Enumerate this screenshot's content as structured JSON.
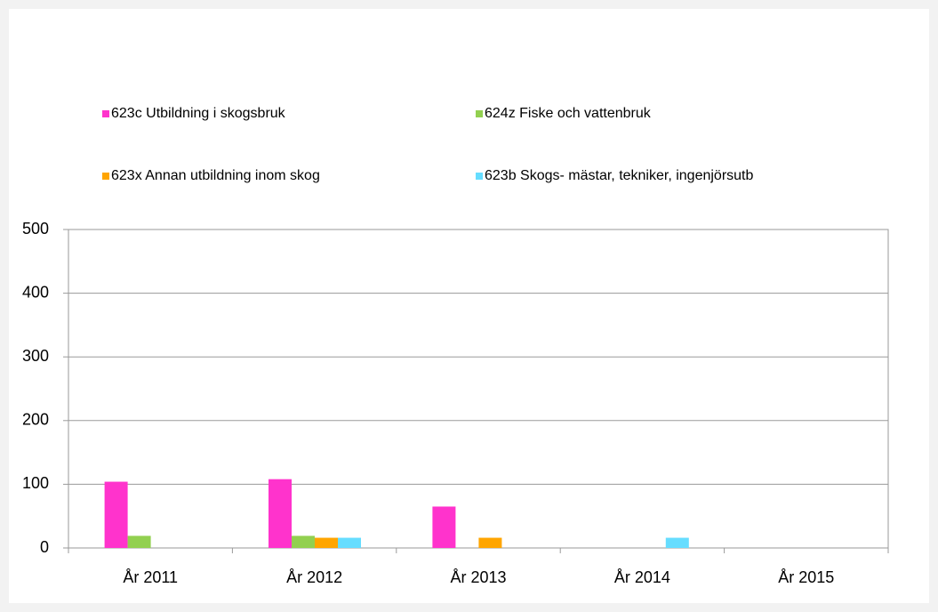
{
  "chart_data": {
    "type": "bar",
    "categories": [
      "År 2011",
      "År 2012",
      "År 2013",
      "År 2014",
      "År 2015"
    ],
    "series": [
      {
        "name": "623c Utbildning i skogsbruk",
        "color": "#ff33cc",
        "values": [
          104,
          108,
          65,
          0,
          0
        ]
      },
      {
        "name": "624z Fiske och vattenbruk",
        "color": "#92d050",
        "values": [
          19,
          19,
          0,
          0,
          0
        ]
      },
      {
        "name": "623x Annan utbildning inom skog",
        "color": "#ffa500",
        "values": [
          0,
          16,
          16,
          0,
          0
        ]
      },
      {
        "name": "623b Skogs- mästar, tekniker, ingenjörsutb",
        "color": "#66ddff",
        "values": [
          0,
          16,
          0,
          16,
          0
        ]
      }
    ],
    "ylim": [
      0,
      500
    ],
    "yticks": [
      0,
      100,
      200,
      300,
      400,
      500
    ],
    "grid": true,
    "legend": "top"
  }
}
